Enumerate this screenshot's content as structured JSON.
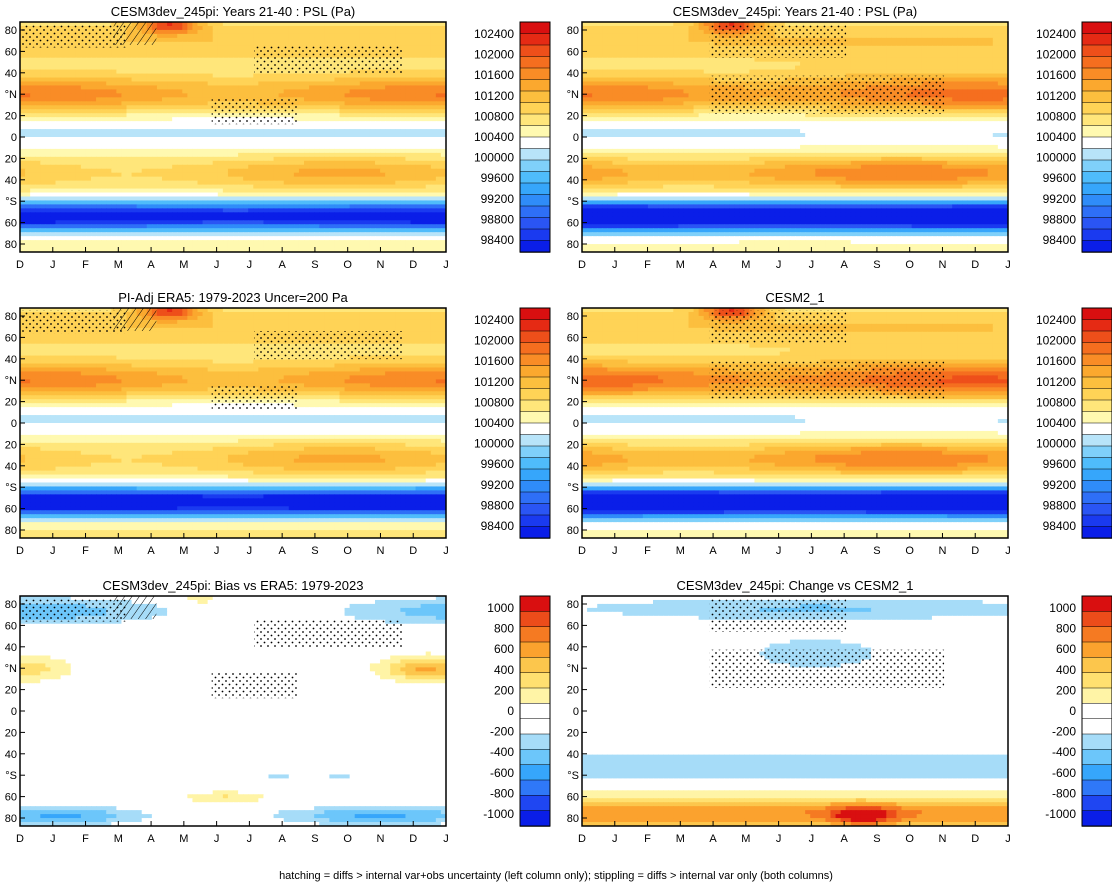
{
  "figure": {
    "footnote": "hatching = diffs > internal var+obs uncertainty (left column only); stippling = diffs > internal var only (both columns)"
  },
  "months": [
    "D",
    "J",
    "F",
    "M",
    "A",
    "M",
    "J",
    "J",
    "A",
    "S",
    "O",
    "N",
    "D",
    "J"
  ],
  "lat_ticks": [
    "80",
    "60",
    "40",
    "°N",
    "20",
    "0",
    "20",
    "40",
    "°S",
    "60",
    "80"
  ],
  "colors": {
    "psl_levels": [
      "#0a1ee8",
      "#1a3af0",
      "#2a55f4",
      "#2e6ff7",
      "#2f8cf9",
      "#36a6fb",
      "#4fbcfb",
      "#7fd0fa",
      "#b8e4f9",
      "#ffffff",
      "#fff9b0",
      "#ffe67a",
      "#ffd356",
      "#fcbf3e",
      "#fba82e",
      "#f98c26",
      "#f56e1f",
      "#ee4f1a",
      "#e52a14",
      "#d90f10"
    ],
    "bias_levels": [
      "#0a1ee8",
      "#1f46f2",
      "#2f78f8",
      "#36a6fb",
      "#6cc6fa",
      "#a6dcf8",
      "#ffffff",
      "#ffffff",
      "#fff4a6",
      "#ffe070",
      "#fcc64c",
      "#fba22e",
      "#f57a22",
      "#ec4c1a",
      "#d90f10"
    ],
    "frame": "#000000"
  },
  "chart_data": [
    {
      "id": "p1",
      "type": "heatmap",
      "variable": "PSL",
      "title": "CESM3dev_245pi: Years 21-40 : PSL (Pa)",
      "colorbar_labels": [
        "102400",
        "102000",
        "101600",
        "101200",
        "100800",
        "100400",
        "100000",
        "99600",
        "99200",
        "98800",
        "98400"
      ],
      "range": [
        98200,
        102600
      ],
      "stipple": "sparse",
      "hatch": true
    },
    {
      "id": "p2",
      "type": "heatmap",
      "variable": "PSL",
      "title": "CESM3dev_245pi: Years 21-40 : PSL (Pa)",
      "colorbar_labels": [
        "102400",
        "102000",
        "101600",
        "101200",
        "100800",
        "100400",
        "100000",
        "99600",
        "99200",
        "98800",
        "98400"
      ],
      "range": [
        98200,
        102600
      ],
      "stipple": "dense",
      "hatch": false
    },
    {
      "id": "p3",
      "type": "heatmap",
      "variable": "PSL",
      "title": "PI-Adj ERA5: 1979-2023 Uncer=200 Pa",
      "colorbar_labels": [
        "102400",
        "102000",
        "101600",
        "101200",
        "100800",
        "100400",
        "100000",
        "99600",
        "99200",
        "98800",
        "98400"
      ],
      "range": [
        98200,
        102600
      ],
      "stipple": "sparse",
      "hatch": true
    },
    {
      "id": "p4",
      "type": "heatmap",
      "variable": "PSL",
      "title": "CESM2_1",
      "colorbar_labels": [
        "102400",
        "102000",
        "101600",
        "101200",
        "100800",
        "100400",
        "100000",
        "99600",
        "99200",
        "98800",
        "98400"
      ],
      "range": [
        98200,
        102600
      ],
      "stipple": "dense",
      "hatch": false
    },
    {
      "id": "p5",
      "type": "heatmap",
      "variable": "bias",
      "title": "CESM3dev_245pi: Bias vs ERA5: 1979-2023",
      "colorbar_labels": [
        "1000",
        "800",
        "600",
        "400",
        "200",
        "0",
        "-200",
        "-400",
        "-600",
        "-800",
        "-1000"
      ],
      "range": [
        -1100,
        1100
      ],
      "stipple": "sparse",
      "hatch": true
    },
    {
      "id": "p6",
      "type": "heatmap",
      "variable": "change",
      "title": "CESM3dev_245pi: Change vs CESM2_1",
      "colorbar_labels": [
        "1000",
        "800",
        "600",
        "400",
        "200",
        "0",
        "-200",
        "-400",
        "-600",
        "-800",
        "-1000"
      ],
      "range": [
        -1100,
        1100
      ],
      "stipple": "dense",
      "hatch": false
    }
  ]
}
